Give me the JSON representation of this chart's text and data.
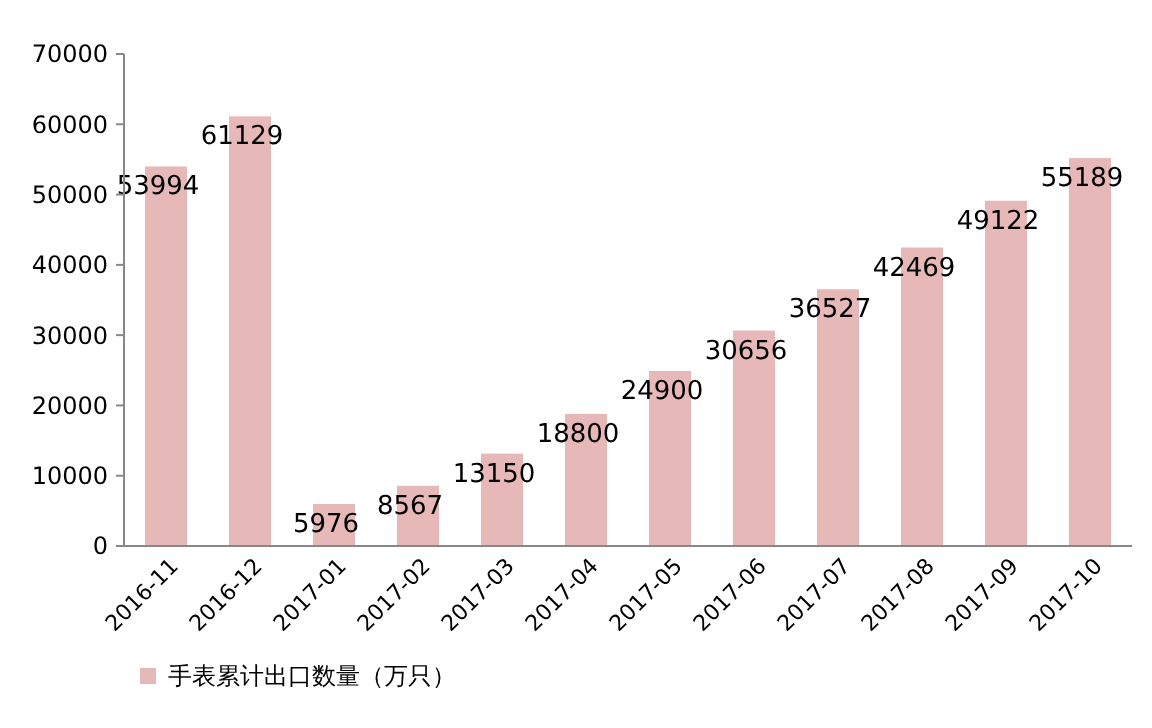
{
  "chart_data": {
    "type": "bar",
    "categories": [
      "2016-11",
      "2016-12",
      "2017-01",
      "2017-02",
      "2017-03",
      "2017-04",
      "2017-05",
      "2017-06",
      "2017-07",
      "2017-08",
      "2017-09",
      "2017-10"
    ],
    "series": [
      {
        "name": "手表累计出口数量（万只）",
        "color": "#e6b8b7",
        "values": [
          53994,
          61129,
          5976,
          8567,
          13150,
          18800,
          24900,
          30656,
          36527,
          42469,
          49122,
          55189
        ]
      }
    ],
    "ylim": [
      0,
      70000
    ],
    "yticks": [
      0,
      10000,
      20000,
      30000,
      40000,
      50000,
      60000,
      70000
    ],
    "data_labels": true,
    "legend": "bottom left",
    "grid": false
  }
}
